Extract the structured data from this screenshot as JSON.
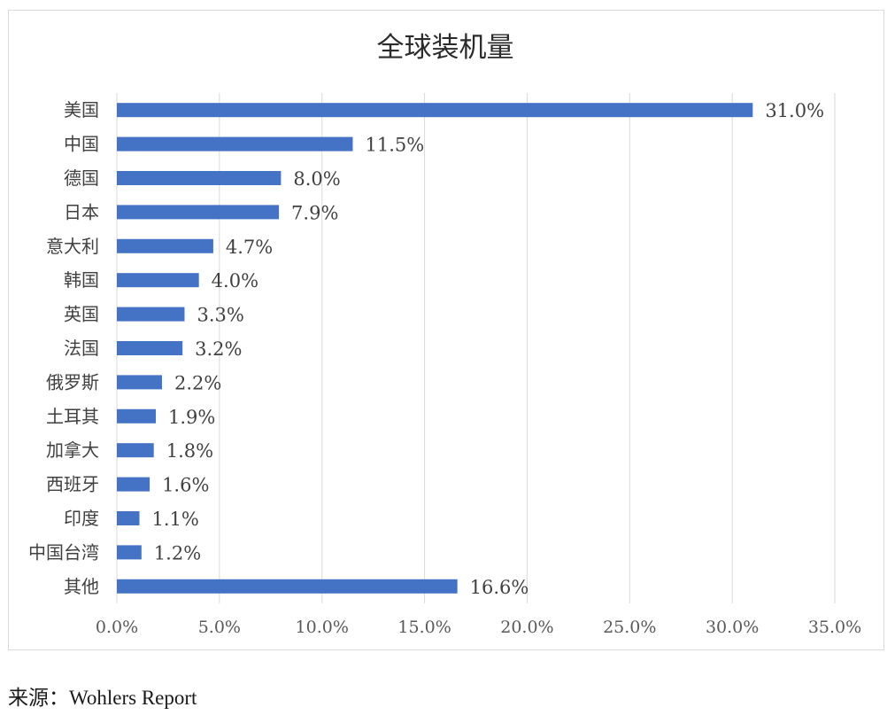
{
  "chart_data": {
    "type": "bar",
    "orientation": "horizontal",
    "title": "全球装机量",
    "categories": [
      "美国",
      "中国",
      "德国",
      "日本",
      "意大利",
      "韩国",
      "英国",
      "法国",
      "俄罗斯",
      "土耳其",
      "加拿大",
      "西班牙",
      "印度",
      "中国台湾",
      "其他"
    ],
    "values": [
      31.0,
      11.5,
      8.0,
      7.9,
      4.7,
      4.0,
      3.3,
      3.2,
      2.2,
      1.9,
      1.8,
      1.6,
      1.1,
      1.2,
      16.6
    ],
    "data_labels": [
      "31.0%",
      "11.5%",
      "8.0%",
      "7.9%",
      "4.7%",
      "4.0%",
      "3.3%",
      "3.2%",
      "2.2%",
      "1.9%",
      "1.8%",
      "1.6%",
      "1.1%",
      "1.2%",
      "16.6%"
    ],
    "x_ticks": [
      0,
      5,
      10,
      15,
      20,
      25,
      30,
      35
    ],
    "x_tick_labels": [
      "0.0%",
      "5.0%",
      "10.0%",
      "15.0%",
      "20.0%",
      "25.0%",
      "30.0%",
      "35.0%"
    ],
    "xlim": [
      0,
      35
    ],
    "xlabel": "",
    "ylabel": "",
    "grid": "vertical",
    "legend": "none",
    "bar_color": "#4472c4",
    "grid_color": "#d9d9d9"
  },
  "source": {
    "prefix": "来源：",
    "text": "Wohlers Report"
  }
}
